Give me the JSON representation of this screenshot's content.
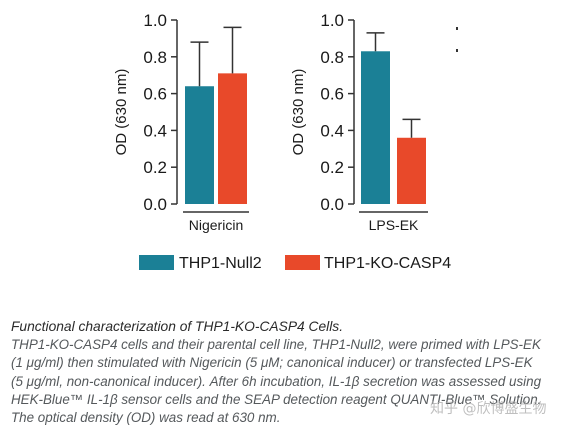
{
  "chart_data": [
    {
      "type": "bar",
      "categories": [
        "THP1-Null2",
        "THP1-KO-CASP4"
      ],
      "group_label": "Nigericin",
      "ylabel": "OD (630 nm)",
      "ylim": [
        0,
        1.0
      ],
      "yticks": [
        "0.0",
        "0.2",
        "0.4",
        "0.6",
        "0.8",
        "1.0"
      ],
      "series": [
        {
          "name": "THP1-Null2",
          "value": 0.64,
          "error": 0.24
        },
        {
          "name": "THP1-KO-CASP4",
          "value": 0.71,
          "error": 0.25
        }
      ]
    },
    {
      "type": "bar",
      "categories": [
        "THP1-Null2",
        "THP1-KO-CASP4"
      ],
      "group_label": "LPS-EK",
      "ylabel": "OD (630 nm)",
      "ylim": [
        0,
        1.0
      ],
      "yticks": [
        "0.0",
        "0.2",
        "0.4",
        "0.6",
        "0.8",
        "1.0"
      ],
      "series": [
        {
          "name": "THP1-Null2",
          "value": 0.83,
          "error": 0.1
        },
        {
          "name": "THP1-KO-CASP4",
          "value": 0.36,
          "error": 0.1
        }
      ]
    }
  ],
  "legend": [
    {
      "label": "THP1-Null2",
      "color": "#1b8096"
    },
    {
      "label": "THP1-KO-CASP4",
      "color": "#e8492a"
    }
  ],
  "caption": {
    "title": "Functional characterization of THP1-KO-CASP4 Cells.",
    "lines": [
      "THP1-KO-CASP4 cells and their parental cell line, THP1-Null2, were primed with LPS-EK",
      "(1 μg/ml) then stimulated with Nigericin (5 μM; canonical inducer) or transfected LPS-EK",
      "(5 μg/ml, non-canonical inducer). After 6h incubation, IL-1β secretion was assessed using",
      "HEK-Blue™ IL-1β sensor cells and the SEAP detection reagent QUANTI-Blue™ Solution.",
      "The optical density (OD) was read at 630 nm."
    ]
  },
  "watermark": "知乎 @欣博盛生物"
}
